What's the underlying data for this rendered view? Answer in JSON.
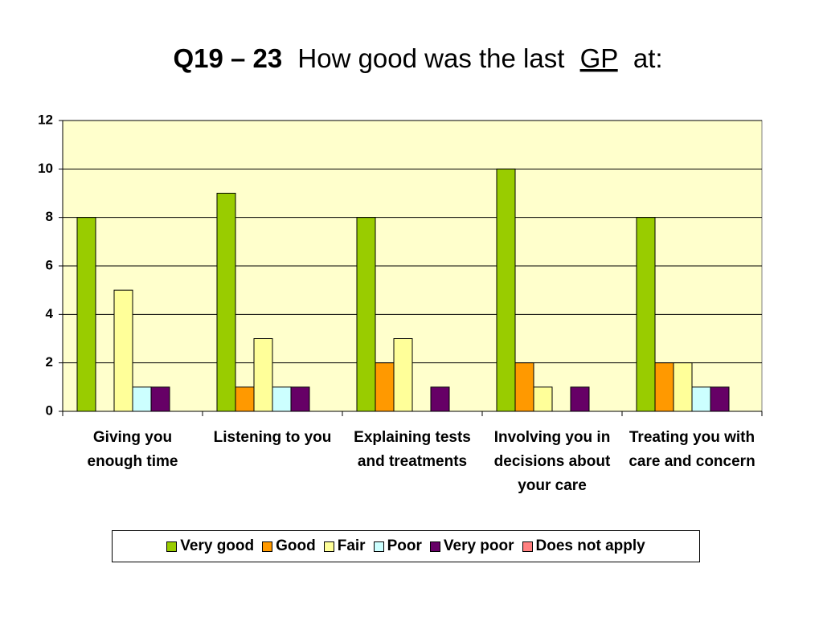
{
  "chart_data": {
    "type": "bar",
    "title": [
      "Q19 – 23",
      "How good was the last",
      "GP",
      "at:"
    ],
    "categories": [
      "Giving you enough time",
      "Listening to you",
      "Explaining tests and treatments",
      "Involving you in decisions about your care",
      "Treating you with care and concern"
    ],
    "series": [
      {
        "name": "Very good",
        "color": "#99cc00",
        "values": [
          8,
          9,
          8,
          10,
          8
        ]
      },
      {
        "name": "Good",
        "color": "#ff9900",
        "values": [
          0,
          1,
          2,
          2,
          2
        ]
      },
      {
        "name": "Fair",
        "color": "#ffff99",
        "values": [
          5,
          3,
          3,
          1,
          2
        ]
      },
      {
        "name": "Poor",
        "color": "#ccffff",
        "values": [
          1,
          1,
          0,
          0,
          1
        ]
      },
      {
        "name": "Very poor",
        "color": "#660066",
        "values": [
          1,
          1,
          1,
          1,
          1
        ]
      },
      {
        "name": "Does not apply",
        "color": "#ff8080",
        "values": [
          0,
          0,
          0,
          0,
          0
        ]
      }
    ],
    "ylim": [
      0,
      12
    ],
    "yticks": [
      0,
      2,
      4,
      6,
      8,
      10,
      12
    ],
    "grid": true,
    "legend": "bottom"
  }
}
